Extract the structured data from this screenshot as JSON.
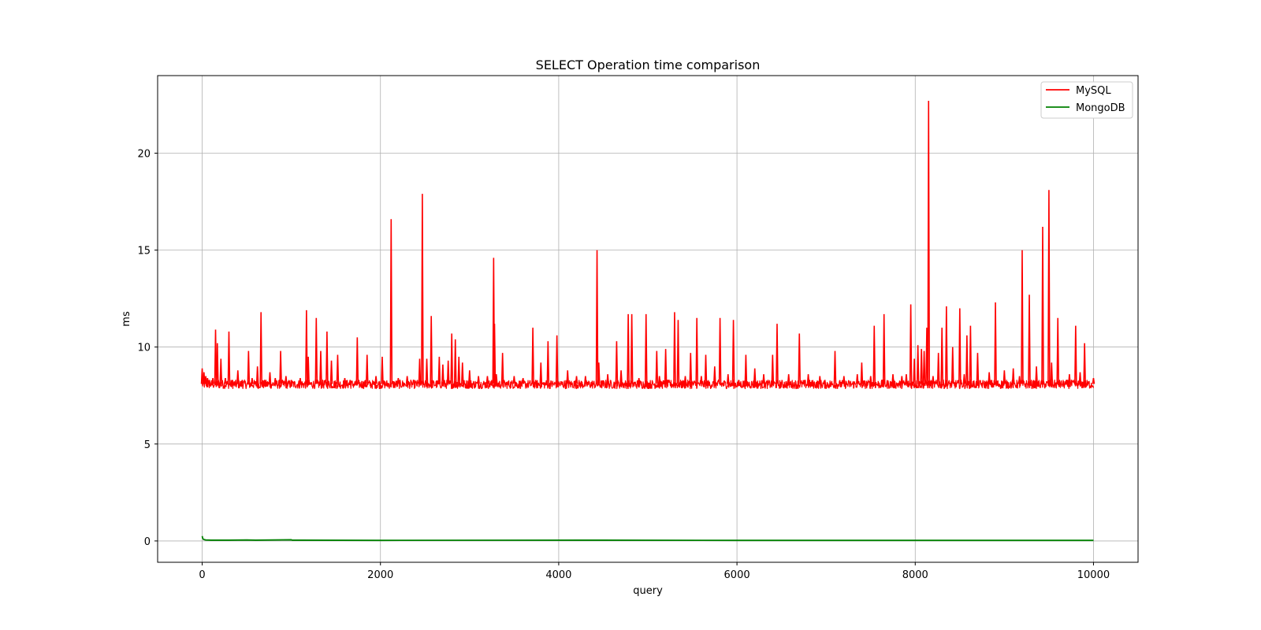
{
  "chart_data": {
    "type": "line",
    "title": "SELECT Operation time comparison",
    "xlabel": "query",
    "ylabel": "ms",
    "xlim": [
      -500,
      10500
    ],
    "ylim": [
      -1.1,
      24
    ],
    "xticks": [
      0,
      2000,
      4000,
      6000,
      8000,
      10000
    ],
    "yticks": [
      0,
      5,
      10,
      15,
      20
    ],
    "grid": true,
    "legend_position": "top-right",
    "series": [
      {
        "name": "MySQL",
        "color": "#ff0000",
        "baseline": 8.1,
        "points_x": [
          0,
          10,
          20,
          30,
          40,
          60,
          80,
          120,
          150,
          170,
          180,
          210,
          260,
          300,
          340,
          400,
          450,
          520,
          560,
          620,
          660,
          700,
          760,
          820,
          880,
          940,
          1000,
          1100,
          1170,
          1190,
          1280,
          1330,
          1400,
          1450,
          1520,
          1600,
          1660,
          1740,
          1850,
          1950,
          2020,
          2120,
          2200,
          2300,
          2440,
          2470,
          2520,
          2570,
          2660,
          2700,
          2760,
          2800,
          2840,
          2880,
          2920,
          3000,
          3100,
          3200,
          3270,
          3280,
          3300,
          3370,
          3500,
          3600,
          3710,
          3800,
          3880,
          3980,
          4100,
          4200,
          4300,
          4430,
          4450,
          4550,
          4650,
          4700,
          4780,
          4820,
          4900,
          4980,
          5100,
          5130,
          5200,
          5300,
          5340,
          5420,
          5480,
          5550,
          5600,
          5650,
          5750,
          5810,
          5900,
          5960,
          6100,
          6200,
          6300,
          6400,
          6450,
          6580,
          6700,
          6800,
          6930,
          7100,
          7200,
          7350,
          7400,
          7500,
          7540,
          7650,
          7750,
          7850,
          7900,
          7950,
          7990,
          8030,
          8070,
          8100,
          8130,
          8150,
          8200,
          8260,
          8300,
          8350,
          8420,
          8500,
          8550,
          8580,
          8620,
          8700,
          8830,
          8900,
          9000,
          9100,
          9170,
          9200,
          9280,
          9360,
          9430,
          9500,
          9530,
          9600,
          9730,
          9800,
          9850,
          9900,
          10000
        ],
        "points_y": [
          8.9,
          8.2,
          8.7,
          8.3,
          8.5,
          8.4,
          8.3,
          8.4,
          10.9,
          10.2,
          8.3,
          9.4,
          8.4,
          10.8,
          8.3,
          8.8,
          8.3,
          9.8,
          8.4,
          9.0,
          11.8,
          8.3,
          8.7,
          8.4,
          9.8,
          8.5,
          8.3,
          8.4,
          11.9,
          9.5,
          11.5,
          9.8,
          10.8,
          9.3,
          9.6,
          8.4,
          8.3,
          10.5,
          9.6,
          8.5,
          9.5,
          16.6,
          8.4,
          8.5,
          9.4,
          17.9,
          9.4,
          11.6,
          9.5,
          9.1,
          9.3,
          10.7,
          10.4,
          9.5,
          9.2,
          8.8,
          8.5,
          8.5,
          14.6,
          11.2,
          8.6,
          9.7,
          8.5,
          8.4,
          11.0,
          9.2,
          10.3,
          10.6,
          8.8,
          8.5,
          8.5,
          15.0,
          9.2,
          8.6,
          10.3,
          8.8,
          11.7,
          11.7,
          8.4,
          11.7,
          9.8,
          8.5,
          9.9,
          11.8,
          11.4,
          8.5,
          9.7,
          11.5,
          8.5,
          9.6,
          9.0,
          11.5,
          8.6,
          11.4,
          9.6,
          8.9,
          8.6,
          9.6,
          11.2,
          8.6,
          10.7,
          8.6,
          8.5,
          9.8,
          8.5,
          8.6,
          9.2,
          8.5,
          11.1,
          11.7,
          8.6,
          8.5,
          8.6,
          12.2,
          9.4,
          10.1,
          9.9,
          9.8,
          11.0,
          22.7,
          8.5,
          9.7,
          11.0,
          12.1,
          10.0,
          12.0,
          8.6,
          10.6,
          11.1,
          9.7,
          8.7,
          12.3,
          8.8,
          8.9,
          8.5,
          15.0,
          12.7,
          9.0,
          16.2,
          18.1,
          9.2,
          11.5,
          8.6,
          11.1,
          8.7,
          10.2,
          8.4,
          8.2
        ]
      },
      {
        "name": "MongoDB",
        "color": "#008000",
        "points_x": [
          0,
          5,
          10,
          20,
          40,
          100,
          300,
          500,
          600,
          1000,
          1010,
          2000,
          4300,
          6000,
          8000,
          10000
        ],
        "points_y": [
          0.25,
          0.15,
          0.1,
          0.07,
          0.05,
          0.04,
          0.04,
          0.05,
          0.04,
          0.06,
          0.04,
          0.03,
          0.04,
          0.03,
          0.03,
          0.03
        ]
      }
    ]
  }
}
